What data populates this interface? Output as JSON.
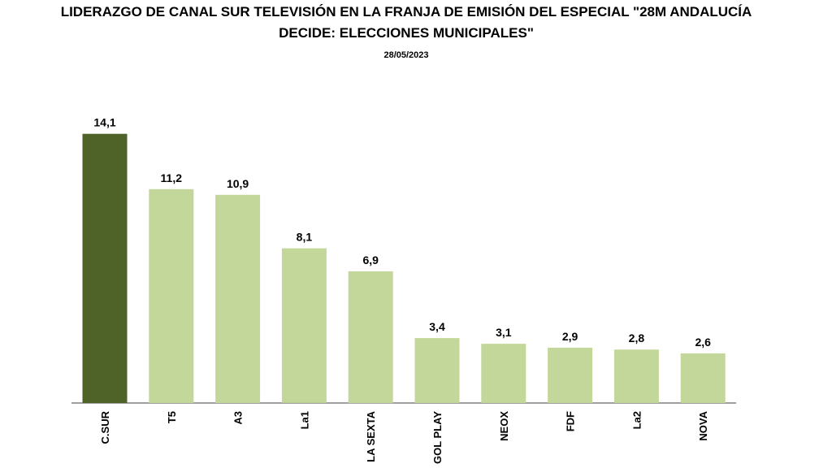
{
  "chart_data": {
    "type": "bar",
    "title_line1": "LIDERAZGO DE CANAL SUR TELEVISIÓN EN LA FRANJA DE EMISIÓN DEL ESPECIAL \"28M ANDALUCÍA",
    "title_line2": "DECIDE: ELECCIONES MUNICIPALES\"",
    "subtitle": "28/05/2023",
    "categories": [
      "C.SUR",
      "T5",
      "A3",
      "La1",
      "LA SEXTA",
      "GOL PLAY",
      "NEOX",
      "FDF",
      "La2",
      "NOVA"
    ],
    "values": [
      14.1,
      11.2,
      10.9,
      8.1,
      6.9,
      3.4,
      3.1,
      2.9,
      2.8,
      2.6
    ],
    "value_labels": [
      "14,1",
      "11,2",
      "10,9",
      "8,1",
      "6,9",
      "3,4",
      "3,1",
      "2,9",
      "2,8",
      "2,6"
    ],
    "ylim": [
      0,
      15
    ],
    "grid": false,
    "colors": {
      "highlight": "#4f6228",
      "bar": "#c4d79b",
      "axis": "#808080"
    }
  }
}
